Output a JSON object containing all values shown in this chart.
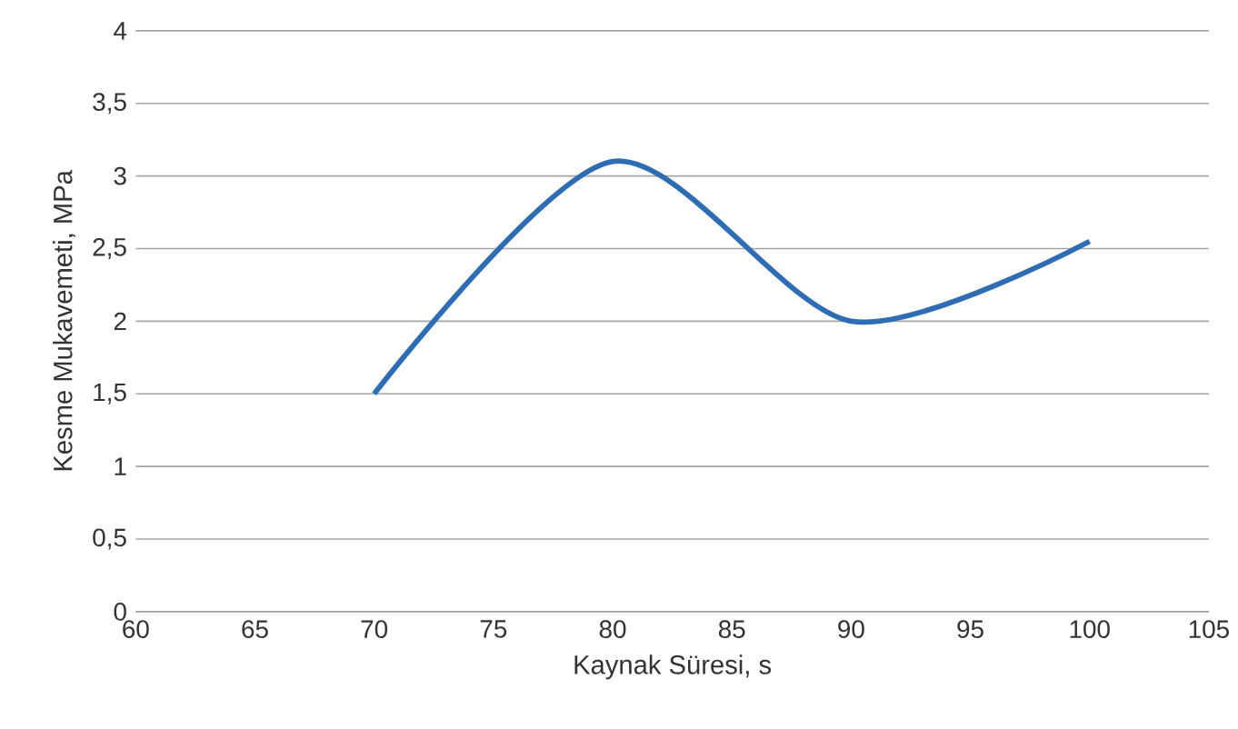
{
  "chart_data": {
    "type": "line",
    "xlabel": "Kaynak Süresi, s",
    "ylabel": "Kesme Mukavemeti, MPa",
    "x": [
      70,
      80,
      90,
      100
    ],
    "values": [
      1.5,
      3.1,
      2.0,
      2.55
    ],
    "color": "#2e6db4",
    "xlim": [
      60,
      105
    ],
    "xticks": [
      60,
      65,
      70,
      75,
      80,
      85,
      90,
      95,
      100,
      105
    ],
    "ylim": [
      0,
      4
    ],
    "yticks": [
      0,
      {
        "value": 0.5,
        "label": "0,5"
      },
      1,
      {
        "value": 1.5,
        "label": "1,5"
      },
      2,
      {
        "value": 2.5,
        "label": "2,5"
      },
      3,
      {
        "value": 3.5,
        "label": "3,5"
      },
      4
    ],
    "grid": "y"
  }
}
